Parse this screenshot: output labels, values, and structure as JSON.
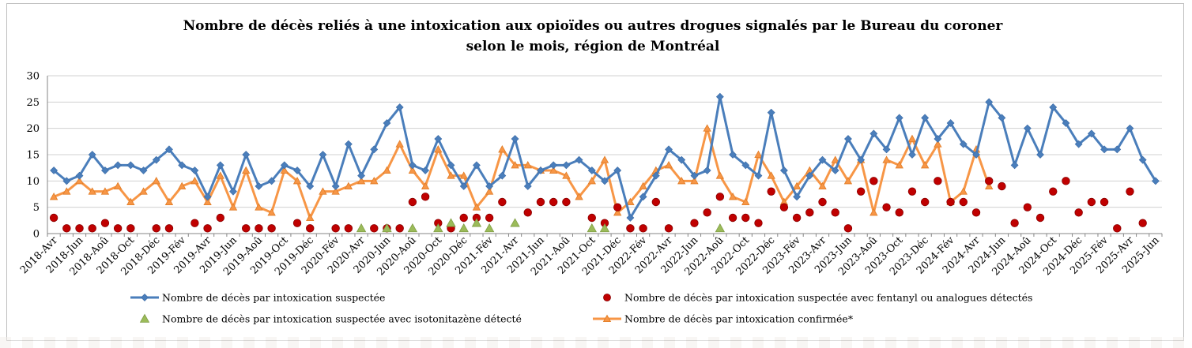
{
  "chart_data": {
    "type": "line",
    "title": [
      "Nombre de décès reliés à une intoxication aux opioïdes  ou autres drogues signalés par le Bureau du coroner",
      "selon le mois, région de Montréal"
    ],
    "ylim": [
      0,
      30
    ],
    "yticks": [
      0,
      5,
      10,
      15,
      20,
      25,
      30
    ],
    "grid": true,
    "categories": [
      "2018-Avr",
      "2018-Mai",
      "2018-Jun",
      "2018-Jul",
      "2018-Aoû",
      "2018-Sep",
      "2018-Oct",
      "2018-Nov",
      "2018-Déc",
      "2019-Jan",
      "2019-Fév",
      "2019-Mar",
      "2019-Avr",
      "2019-Mai",
      "2019-Jun",
      "2019-Jul",
      "2019-Aoû",
      "2019-Sep",
      "2019-Oct",
      "2019-Nov",
      "2019-Déc",
      "2020-Jan",
      "2020-Fév",
      "2020-Mar",
      "2020-Avr",
      "2020-Mai",
      "2020-Jun",
      "2020-Jul",
      "2020-Aoû",
      "2020-Sep",
      "2020-Oct",
      "2020-Nov",
      "2020-Déc",
      "2021-Jan",
      "2021-Fév",
      "2021-Mar",
      "2021-Avr",
      "2021-Mai",
      "2021-Jun",
      "2021-Jul",
      "2021-Aoû",
      "2021-Sep",
      "2021-Oct",
      "2021-Nov",
      "2021-Déc",
      "2022-Jan",
      "2022-Fév",
      "2022-Mar",
      "2022-Avr",
      "2022-Mai",
      "2022-Jun",
      "2022-Jul",
      "2022-Aoû",
      "2022-Sep",
      "2022-Oct",
      "2022-Nov",
      "2022-Déc",
      "2023-Jan",
      "2023-Fév",
      "2023-Mar",
      "2023-Avr",
      "2023-Mai",
      "2023-Jun",
      "2023-Jul",
      "2023-Aoû",
      "2023-Sep",
      "2023-Oct",
      "2023-Nov",
      "2023-Déc",
      "2024-Jan",
      "2024-Fév",
      "2024-Mar",
      "2024-Avr",
      "2024-Mai",
      "2024-Jun",
      "2024-Jul",
      "2024-Aoû",
      "2024-Sep",
      "2024-Oct",
      "2024-Nov",
      "2024-Déc",
      "2025-Jan",
      "2025-Fév",
      "2025-Mar",
      "2025-Avr",
      "2025-Mai",
      "2025-Jun"
    ],
    "tick_labels": [
      "2018-Avr",
      "2018-Jun",
      "2018-Aoû",
      "2018-Oct",
      "2018-Déc",
      "2019-Fév",
      "2019-Avr",
      "2019-Jun",
      "2019-Aoû",
      "2019-Oct",
      "2019-Déc",
      "2020-Fév",
      "2020-Avr",
      "2020-Jun",
      "2020-Aoû",
      "2020-Oct",
      "2020-Déc",
      "2021-Fév",
      "2021-Avr",
      "2021-Jun",
      "2021-Aoû",
      "2021-Oct",
      "2021-Déc",
      "2022-Fév",
      "2022-Avr",
      "2022-Jun",
      "2022-Aoû",
      "2022-Oct",
      "2022-Déc",
      "2023-Fév",
      "2023-Avr",
      "2023-Jun",
      "2023-Aoû",
      "2023-Oct",
      "2023-Déc",
      "2024-Fév",
      "2024-Avr",
      "2024-Jun",
      "2024-Aoû",
      "2024-Oct",
      "2024-Déc",
      "2025-Fév",
      "2025-Avr",
      "2025-Jun"
    ],
    "series": [
      {
        "name": "Nombre de décès par intoxication suspectée",
        "kind": "line-diamond",
        "color": "#4a7ebb",
        "values": [
          12,
          10,
          11,
          15,
          12,
          13,
          13,
          12,
          14,
          16,
          13,
          12,
          7,
          13,
          8,
          15,
          9,
          10,
          13,
          12,
          9,
          15,
          9,
          17,
          11,
          16,
          21,
          24,
          13,
          12,
          18,
          13,
          9,
          13,
          9,
          11,
          18,
          9,
          12,
          13,
          13,
          14,
          12,
          10,
          12,
          3,
          7,
          11,
          16,
          14,
          11,
          12,
          26,
          15,
          13,
          11,
          23,
          12,
          7,
          11,
          14,
          12,
          18,
          14,
          19,
          16,
          22,
          15,
          22,
          18,
          21,
          17,
          15,
          25,
          22,
          13,
          20,
          15,
          24,
          21,
          17,
          19,
          16,
          16,
          20,
          14,
          10
        ]
      },
      {
        "name": "Nombre de décès par intoxication suspectée avec fentanyl ou analogues détectés",
        "kind": "dots",
        "color": "#c00000",
        "values": [
          3,
          1,
          1,
          1,
          2,
          1,
          1,
          null,
          1,
          1,
          null,
          2,
          1,
          3,
          null,
          1,
          1,
          1,
          null,
          2,
          1,
          null,
          1,
          1,
          null,
          1,
          1,
          1,
          6,
          7,
          2,
          1,
          3,
          3,
          3,
          6,
          null,
          4,
          6,
          6,
          6,
          null,
          3,
          2,
          5,
          1,
          1,
          6,
          1,
          null,
          2,
          4,
          7,
          3,
          3,
          2,
          8,
          5,
          3,
          4,
          6,
          4,
          1,
          8,
          10,
          5,
          4,
          8,
          6,
          10,
          6,
          6,
          4,
          10,
          9,
          2,
          5,
          3,
          8,
          10,
          4,
          6,
          6,
          1,
          8,
          2,
          null
        ]
      },
      {
        "name": "Nombre de décès par intoxication suspectée avec isotonitazène détecté",
        "kind": "triangles",
        "color": "#9bbb59",
        "values": [
          null,
          null,
          null,
          null,
          null,
          null,
          null,
          null,
          null,
          null,
          null,
          null,
          null,
          null,
          null,
          null,
          null,
          null,
          null,
          null,
          null,
          null,
          null,
          null,
          1,
          null,
          1,
          null,
          1,
          null,
          1,
          2,
          1,
          2,
          1,
          null,
          2,
          null,
          null,
          null,
          null,
          null,
          1,
          1,
          null,
          null,
          null,
          null,
          null,
          null,
          null,
          null,
          1,
          null,
          null,
          null,
          null,
          null,
          null,
          null,
          null,
          null,
          null,
          null,
          null,
          null,
          null,
          null,
          null,
          null,
          null,
          null,
          null,
          null,
          null,
          null,
          null,
          null,
          null,
          null,
          null,
          null,
          null,
          null,
          null,
          null,
          null
        ]
      },
      {
        "name": "Nombre de décès par intoxication confirmée*",
        "kind": "line-triangle",
        "color": "#f79646",
        "values": [
          7,
          8,
          10,
          8,
          8,
          9,
          6,
          8,
          10,
          6,
          9,
          10,
          6,
          11,
          5,
          12,
          5,
          4,
          12,
          10,
          3,
          8,
          8,
          9,
          10,
          10,
          12,
          17,
          12,
          9,
          16,
          11,
          11,
          5,
          8,
          16,
          13,
          13,
          12,
          12,
          11,
          7,
          10,
          14,
          4,
          6,
          9,
          12,
          13,
          10,
          10,
          20,
          11,
          7,
          6,
          15,
          11,
          6,
          9,
          12,
          9,
          14,
          10,
          14,
          4,
          14,
          13,
          18,
          13,
          17,
          6,
          8,
          16,
          9,
          null,
          null,
          null,
          null,
          null,
          null,
          null,
          null,
          null,
          null,
          null,
          null,
          null
        ]
      }
    ],
    "legend": [
      "Nombre de décès par intoxication suspectée",
      "Nombre de décès par intoxication suspectée avec fentanyl ou analogues détectés",
      "Nombre de décès par intoxication suspectée avec isotonitazène détecté",
      "Nombre de décès par intoxication confirmée*"
    ],
    "legend_position": "bottom"
  }
}
